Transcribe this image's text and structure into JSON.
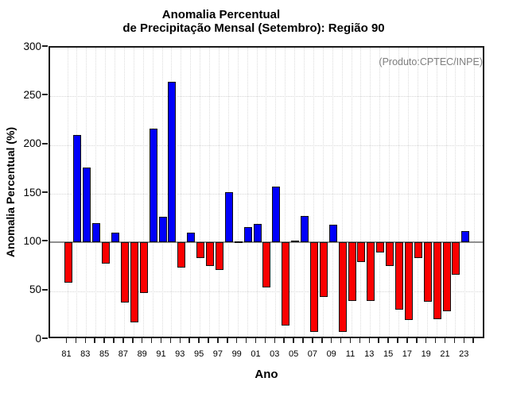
{
  "title": {
    "line1": "Anomalia Percentual",
    "line2": "de Precipitação Mensal (Setembro): Região 90"
  },
  "annotation": "(Produto:CPTEC/INPE)",
  "colors": {
    "above_baseline": "#0000fb",
    "below_baseline": "#fb0000",
    "baseline_line": "#8f8f8f",
    "grid": "#dcdcdc",
    "frame": "#1b1b1b",
    "annotation_text": "#7e7e7e"
  },
  "chart_data": {
    "type": "bar",
    "title": "Anomalia Percentual de Precipitação Mensal (Setembro): Região 90",
    "xlabel": "Ano",
    "ylabel": "Anomalia Percentual (%)",
    "ylim": [
      0,
      300
    ],
    "baseline": 100,
    "grid": "dotted, vertical at every year tick and horizontal every 50",
    "legend": "none",
    "yticks": [
      0,
      50,
      100,
      150,
      200,
      250,
      300
    ],
    "xticks": [
      "81",
      "82",
      "83",
      "84",
      "85",
      "86",
      "87",
      "88",
      "89",
      "90",
      "91",
      "92",
      "93",
      "94",
      "95",
      "96",
      "97",
      "98",
      "99",
      "00",
      "01",
      "02",
      "03",
      "04",
      "05",
      "06",
      "07",
      "08",
      "09",
      "10",
      "11",
      "12",
      "13",
      "14",
      "15",
      "16",
      "17",
      "18",
      "19",
      "20",
      "21",
      "22",
      "23",
      "24"
    ],
    "xtick_labels_shown": [
      "81",
      "83",
      "85",
      "87",
      "89",
      "91",
      "93",
      "95",
      "97",
      "99",
      "01",
      "03",
      "05",
      "07",
      "09",
      "11",
      "13",
      "15",
      "17",
      "19",
      "21",
      "23"
    ],
    "years": [
      "81",
      "82",
      "83",
      "84",
      "85",
      "86",
      "87",
      "88",
      "89",
      "90",
      "91",
      "92",
      "93",
      "94",
      "95",
      "96",
      "97",
      "98",
      "99",
      "00",
      "01",
      "02",
      "03",
      "04",
      "05",
      "06",
      "07",
      "08",
      "09",
      "10",
      "11",
      "12",
      "13",
      "14",
      "15",
      "16",
      "17",
      "18",
      "19",
      "20",
      "21",
      "22",
      "23"
    ],
    "values": [
      59,
      210,
      177,
      120,
      78,
      110,
      38,
      18,
      48,
      217,
      126,
      265,
      74,
      110,
      84,
      76,
      72,
      152,
      101,
      116,
      119,
      54,
      157,
      15,
      102,
      127,
      8,
      44,
      118,
      8,
      40,
      80,
      40,
      90,
      76,
      31,
      20,
      84,
      39,
      21,
      29,
      67,
      112
    ],
    "color_rule": "blue if value >= 100 else red"
  }
}
